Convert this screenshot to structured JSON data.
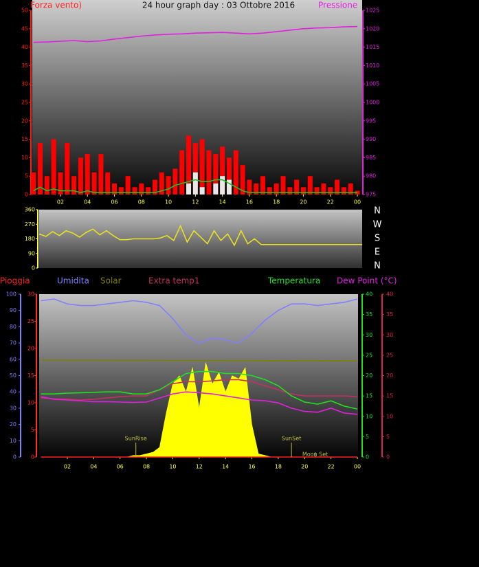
{
  "chart_data": [
    {
      "type": "line",
      "title": "24 hour graph day : 03 Ottobre 2016",
      "y_label": "Forza vento)",
      "y2_label": "Pressione",
      "xlim": [
        0,
        24
      ],
      "xticks": [
        {
          "value": 2,
          "label": "02"
        },
        {
          "value": 4,
          "label": "04"
        },
        {
          "value": 6,
          "label": "06"
        },
        {
          "value": 8,
          "label": "08"
        },
        10,
        12,
        14,
        16,
        18,
        20,
        22,
        {
          "value": 24,
          "label": "00"
        }
      ],
      "ylim": [
        0,
        50
      ],
      "yticks": [
        0,
        5,
        10,
        15,
        20,
        25,
        30,
        35,
        40,
        45,
        50
      ],
      "y2lim": [
        975,
        1025
      ],
      "y2ticks": [
        975,
        980,
        985,
        990,
        995,
        1000,
        1005,
        1010,
        1015,
        1020,
        1025
      ],
      "y_color": "#ff2020",
      "y2_color": "#e020e0",
      "tick_color": "#ffff40",
      "x": [
        0,
        0.5,
        1,
        1.5,
        2,
        2.5,
        3,
        3.5,
        4,
        4.5,
        5,
        5.5,
        6,
        6.5,
        7,
        7.5,
        8,
        8.5,
        9,
        9.5,
        10,
        10.5,
        11,
        11.5,
        12,
        12.5,
        13,
        13.5,
        14,
        14.5,
        15,
        15.5,
        16,
        16.5,
        17,
        17.5,
        18,
        18.5,
        19,
        19.5,
        20,
        20.5,
        21,
        21.5,
        22,
        22.5,
        23,
        23.5,
        24
      ],
      "series": [
        {
          "kind": "bar",
          "color": "#ff0000",
          "values": [
            6,
            14,
            5,
            15,
            6,
            14,
            5,
            10,
            11,
            6,
            11,
            6,
            3,
            2,
            5,
            2,
            3,
            2,
            4,
            6,
            5,
            7,
            12,
            16,
            14,
            15,
            12,
            11,
            13,
            10,
            12,
            8,
            4,
            3,
            5,
            2,
            3,
            5,
            2,
            4,
            2,
            5,
            2,
            3,
            2,
            4,
            2,
            3,
            1
          ]
        },
        {
          "kind": "bar",
          "color": "#e8e8e8",
          "x": [
            11.5,
            12,
            12.5,
            13.5,
            14,
            14.5
          ],
          "values": [
            3,
            6,
            2,
            3,
            5,
            4
          ]
        },
        {
          "kind": "line",
          "color": "#20c020",
          "values": [
            1,
            2,
            1,
            1.5,
            1,
            1,
            1,
            0.5,
            1,
            0.5,
            0.5,
            0.5,
            0.5,
            0.5,
            0.5,
            0.5,
            0.5,
            0.5,
            0.5,
            1,
            1.5,
            2.5,
            3,
            3.5,
            4,
            3.5,
            3.5,
            4,
            4,
            3,
            2,
            1,
            0.5,
            0.5,
            0.5,
            0.5,
            0.5,
            0.5,
            0.5,
            0.5,
            0.5,
            0.5,
            0.5,
            0.5,
            0.5,
            0.5,
            0.5,
            0.5,
            0.5
          ]
        },
        {
          "kind": "line",
          "color": "#e020e0",
          "axis": "y2",
          "x": [
            0,
            1,
            2,
            3,
            4,
            5,
            6,
            7,
            8,
            9,
            10,
            11,
            12,
            13,
            14,
            15,
            16,
            17,
            18,
            19,
            20,
            21,
            22,
            23,
            24
          ],
          "values": [
            1016.3,
            1016.4,
            1016.6,
            1016.8,
            1016.5,
            1016.7,
            1017.2,
            1017.6,
            1018,
            1018.3,
            1018.5,
            1018.6,
            1018.8,
            1018.9,
            1019,
            1018.8,
            1018.6,
            1018.8,
            1019.2,
            1019.6,
            1020,
            1020.2,
            1020.3,
            1020.5,
            1020.6
          ]
        }
      ]
    },
    {
      "type": "line",
      "xlim": [
        0,
        24
      ],
      "ylim": [
        0,
        360
      ],
      "yticks": [
        0,
        90,
        180,
        270,
        360
      ],
      "y_color": "#ffff40",
      "compass": [
        "N",
        "W",
        "S",
        "E",
        "N"
      ],
      "x": [
        0,
        0.5,
        1,
        1.5,
        2,
        2.5,
        3,
        3.5,
        4,
        4.5,
        5,
        5.5,
        6,
        6.5,
        7,
        7.5,
        8,
        8.5,
        9,
        9.5,
        10,
        10.5,
        11,
        11.5,
        12,
        12.5,
        13,
        13.5,
        14,
        14.5,
        15,
        15.5,
        16,
        16.5,
        17,
        17.5,
        18,
        18.5,
        19,
        19.5,
        20,
        20.5,
        21,
        21.5,
        22,
        22.5,
        23,
        23.5,
        24
      ],
      "series": [
        {
          "kind": "line",
          "color": "#e8e020",
          "values": [
            210,
            195,
            225,
            200,
            230,
            215,
            190,
            220,
            240,
            205,
            230,
            200,
            175,
            175,
            180,
            180,
            180,
            180,
            185,
            200,
            170,
            260,
            160,
            230,
            190,
            150,
            230,
            170,
            210,
            140,
            230,
            150,
            180,
            145,
            145,
            145,
            145,
            145,
            145,
            145,
            145,
            145,
            145,
            145,
            145,
            145,
            145,
            145,
            145
          ]
        }
      ]
    },
    {
      "type": "line",
      "xlim": [
        0,
        24
      ],
      "xticks": [
        {
          "value": 2,
          "label": "02"
        },
        {
          "value": 4,
          "label": "04"
        },
        {
          "value": 6,
          "label": "06"
        },
        {
          "value": 8,
          "label": "08"
        },
        10,
        12,
        14,
        16,
        18,
        20,
        22,
        {
          "value": 24,
          "label": "00"
        }
      ],
      "tick_color": "#ffff40",
      "axes": [
        {
          "color": "#ff3030",
          "lim": [
            0,
            30
          ],
          "ticks": [
            0,
            5,
            10,
            15,
            20,
            25,
            30
          ]
        },
        {
          "color": "#8080ff",
          "lim": [
            0,
            100
          ],
          "ticks": [
            0,
            10,
            20,
            30,
            40,
            50,
            60,
            70,
            80,
            90,
            100
          ]
        },
        {
          "color": "#20e020",
          "lim": [
            0,
            40
          ],
          "ticks": [
            0,
            5,
            10,
            15,
            20,
            25,
            30,
            35,
            40
          ]
        },
        {
          "color": "#e02050",
          "lim": [
            0,
            40
          ],
          "ticks": [
            0,
            5,
            10,
            15,
            20,
            25,
            30,
            35,
            40
          ]
        }
      ],
      "x": [
        0,
        1,
        2,
        3,
        4,
        5,
        6,
        7,
        8,
        9,
        10,
        11,
        12,
        13,
        14,
        15,
        16,
        17,
        18,
        19,
        20,
        21,
        22,
        23,
        24
      ],
      "series": [
        {
          "name": "Pioggia",
          "kind": "line",
          "color": "#ff2020",
          "axis": 0,
          "x": [
            0,
            24
          ],
          "values": [
            0,
            0
          ]
        },
        {
          "name": "Umidita",
          "kind": "line",
          "color": "#8080ff",
          "axis": 1,
          "values": [
            96,
            97,
            94,
            93,
            93,
            94,
            95,
            96,
            95,
            93,
            85,
            75,
            70,
            73,
            72,
            70,
            76,
            84,
            90,
            94,
            94,
            93,
            94,
            95,
            97
          ]
        },
        {
          "name": "Solar",
          "kind": "line",
          "color": "#808000",
          "axis": 1,
          "x": [
            0,
            24
          ],
          "values": [
            59.5,
            59
          ]
        },
        {
          "name": "Extra temp1",
          "kind": "line",
          "color": "#c03060",
          "axis": 3,
          "values": [
            14.5,
            14.3,
            14.2,
            14,
            14.2,
            14.5,
            14.8,
            15,
            15,
            16.5,
            18,
            18.5,
            18.5,
            18.7,
            19,
            19,
            18.5,
            17.5,
            16.5,
            15.5,
            15,
            15,
            15,
            15,
            14.8
          ]
        },
        {
          "kind": "area",
          "color": "#ffff00",
          "axis": 1,
          "x": [
            0,
            0.5,
            1,
            1.5,
            2,
            2.5,
            3,
            3.5,
            4,
            4.5,
            5,
            5.5,
            6,
            6.5,
            7,
            7.5,
            8,
            8.5,
            9,
            9.5,
            10,
            10.5,
            11,
            11.5,
            12,
            12.5,
            13,
            13.5,
            14,
            14.5,
            15,
            15.5,
            16,
            16.5,
            17,
            17.5,
            18,
            18.5,
            19,
            19.5,
            20,
            20.5,
            21,
            21.5,
            22,
            22.5,
            23,
            23.5,
            24
          ],
          "values": [
            0,
            0,
            0,
            0,
            0,
            0,
            0,
            0,
            0,
            0,
            0,
            0,
            0,
            0,
            1,
            1,
            2,
            3,
            6,
            27,
            45,
            50,
            40,
            55,
            30,
            58,
            45,
            52,
            40,
            50,
            48,
            55,
            20,
            2,
            1,
            0,
            0,
            0,
            0,
            0,
            0,
            0,
            0,
            0,
            0,
            0,
            0,
            0,
            0
          ]
        },
        {
          "name": "Temperatura",
          "kind": "line",
          "color": "#20e020",
          "axis": 2,
          "values": [
            15.5,
            15.5,
            15.7,
            15.8,
            15.9,
            16,
            16,
            15.5,
            15.5,
            16.5,
            18.5,
            20.5,
            21,
            21,
            20.5,
            20.5,
            20,
            19,
            17.5,
            15,
            13.5,
            13,
            13.8,
            12.5,
            11.8
          ]
        },
        {
          "name": "Dew Point (°C)",
          "kind": "line",
          "color": "#e020e0",
          "axis": 3,
          "values": [
            14.8,
            14.2,
            14,
            13.8,
            13.6,
            13.6,
            13.5,
            13.4,
            13.5,
            14.5,
            15.5,
            16,
            15.8,
            15.5,
            15,
            14.5,
            14,
            13.8,
            13.3,
            12,
            11.2,
            11,
            12,
            10.8,
            10.5
          ]
        }
      ],
      "annotations": [
        {
          "text": "SunRise",
          "x": 7.2
        },
        {
          "text": "SunSet",
          "x": 19
        },
        {
          "text": "Moon Set",
          "x": 20.8
        }
      ],
      "annotation_color": "#c0c040"
    }
  ]
}
